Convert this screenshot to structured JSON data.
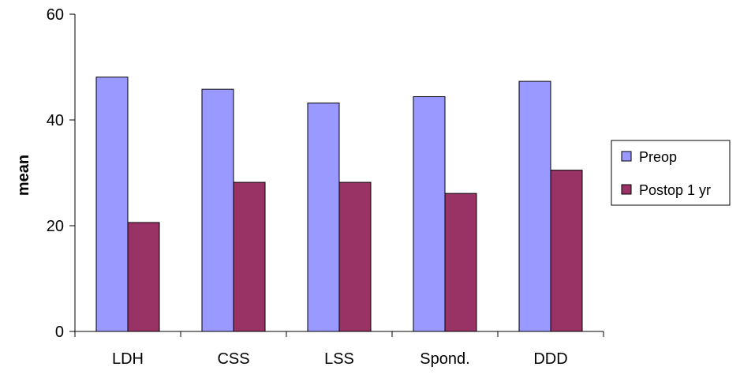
{
  "chart_data": {
    "type": "bar",
    "title": "",
    "xlabel": "",
    "ylabel": "mean",
    "ylim": [
      0,
      60
    ],
    "yticks": [
      0,
      20,
      40,
      60
    ],
    "grid": false,
    "legend_position": "right",
    "categories": [
      "LDH",
      "CSS",
      "LSS",
      "Spond.",
      "DDD"
    ],
    "series": [
      {
        "name": "Preop",
        "color": "#9999ff",
        "values": [
          48.1,
          45.8,
          43.2,
          44.4,
          47.3
        ]
      },
      {
        "name": "Postop 1 yr",
        "color": "#993366",
        "values": [
          20.6,
          28.2,
          28.2,
          26.1,
          30.5
        ]
      }
    ]
  }
}
